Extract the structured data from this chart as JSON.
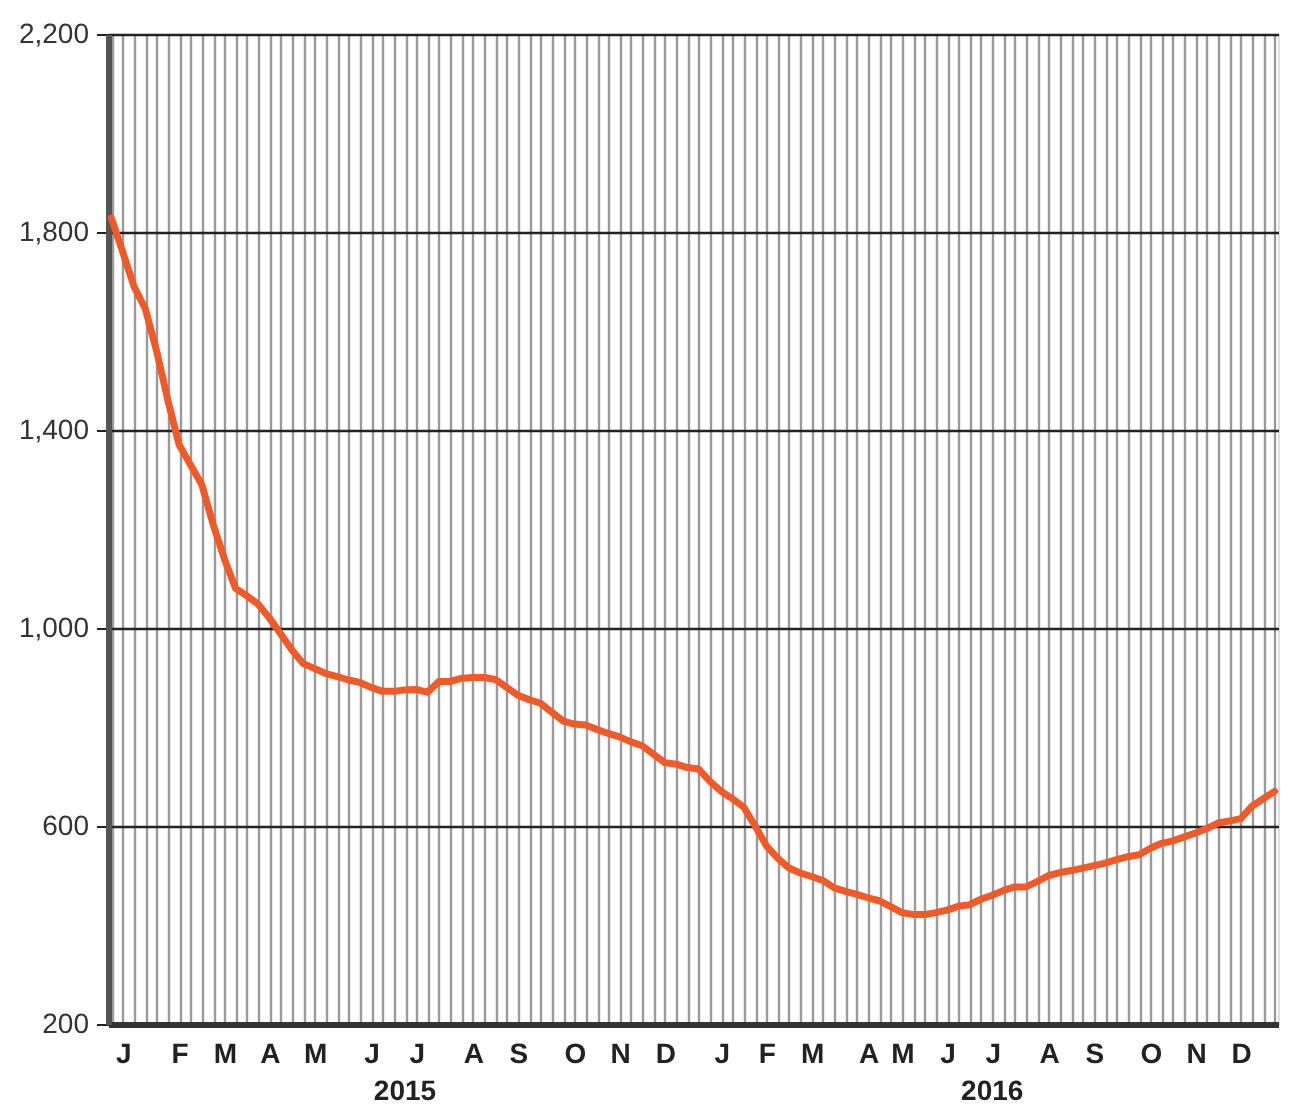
{
  "chart_data": {
    "type": "line",
    "categories": [
      null,
      "J",
      null,
      null,
      null,
      null,
      "F",
      null,
      null,
      null,
      "M",
      null,
      null,
      null,
      "A",
      null,
      null,
      null,
      "M",
      null,
      null,
      null,
      null,
      "J",
      null,
      null,
      null,
      "J",
      null,
      null,
      null,
      null,
      "A",
      null,
      null,
      null,
      "S",
      null,
      null,
      null,
      null,
      "O",
      null,
      null,
      null,
      "N",
      null,
      null,
      null,
      "D",
      null,
      null,
      null,
      null,
      "J",
      null,
      null,
      null,
      "F",
      null,
      null,
      null,
      "M",
      null,
      null,
      null,
      null,
      "A",
      null,
      null,
      "M",
      null,
      null,
      null,
      "J",
      null,
      null,
      null,
      "J",
      null,
      null,
      null,
      null,
      "A",
      null,
      null,
      null,
      "S",
      null,
      null,
      null,
      null,
      "O",
      null,
      null,
      null,
      "N",
      null,
      null,
      null,
      "D",
      null,
      null,
      null
    ],
    "series": [
      {
        "color": "#f05a28",
        "values": [
          1828,
          1760,
          1690,
          1645,
          1560,
          1460,
          1370,
          1330,
          1290,
          1210,
          1140,
          1080,
          1065,
          1048,
          1020,
          988,
          955,
          928,
          918,
          908,
          902,
          895,
          890,
          880,
          872,
          872,
          875,
          876,
          870,
          892,
          892,
          898,
          900,
          900,
          896,
          880,
          864,
          855,
          848,
          830,
          812,
          806,
          804,
          795,
          787,
          780,
          770,
          762,
          745,
          728,
          725,
          718,
          715,
          690,
          670,
          655,
          638,
          600,
          560,
          535,
          515,
          505,
          498,
          490,
          475,
          468,
          462,
          455,
          449,
          437,
          425,
          421,
          421,
          425,
          430,
          438,
          441,
          452,
          460,
          470,
          477,
          477,
          488,
          500,
          506,
          510,
          515,
          520,
          525,
          532,
          538,
          542,
          555,
          565,
          570,
          578,
          586,
          595,
          606,
          610,
          615,
          640,
          655,
          670
        ]
      }
    ],
    "ylim": [
      200,
      2200
    ],
    "yticks": [
      200,
      600,
      {
        "value": 1000,
        "label": "1,000"
      },
      {
        "value": 1400,
        "label": "1,400"
      },
      {
        "value": 1800,
        "label": "1,800"
      },
      {
        "value": 2200,
        "label": "2,200"
      }
    ],
    "grid": true,
    "annotations": [
      "2015",
      "2016"
    ]
  }
}
